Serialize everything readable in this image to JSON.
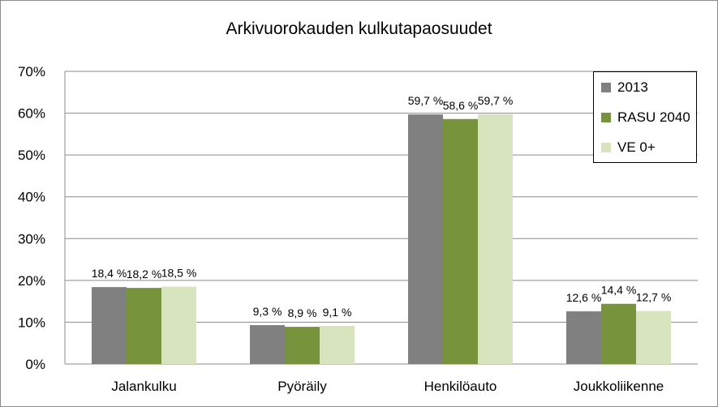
{
  "chart_data": {
    "type": "bar",
    "title": "Arkivuorokauden kulkutapaosuudet",
    "categories": [
      "Jalankulku",
      "Pyöräily",
      "Henkilöauto",
      "Joukkoliikenne"
    ],
    "series": [
      {
        "name": "2013",
        "color": "#808080",
        "values": [
          18.4,
          9.3,
          59.7,
          12.6
        ],
        "labels": [
          "18,4 %",
          "9,3 %",
          "59,7 %",
          "12,6 %"
        ]
      },
      {
        "name": "RASU 2040",
        "color": "#77933c",
        "values": [
          18.2,
          8.9,
          58.6,
          14.4
        ],
        "labels": [
          "18,2 %",
          "8,9 %",
          "58,6 %",
          "14,4 %"
        ]
      },
      {
        "name": "VE 0+",
        "color": "#d7e4bd",
        "values": [
          18.5,
          9.1,
          59.7,
          12.7
        ],
        "labels": [
          "18,5 %",
          "9,1 %",
          "59,7 %",
          "12,7 %"
        ]
      }
    ],
    "ylim": [
      0,
      70
    ],
    "yticks": [
      "0%",
      "10%",
      "20%",
      "30%",
      "40%",
      "50%",
      "60%",
      "70%"
    ],
    "grid": true,
    "legend_position": "top-right"
  }
}
